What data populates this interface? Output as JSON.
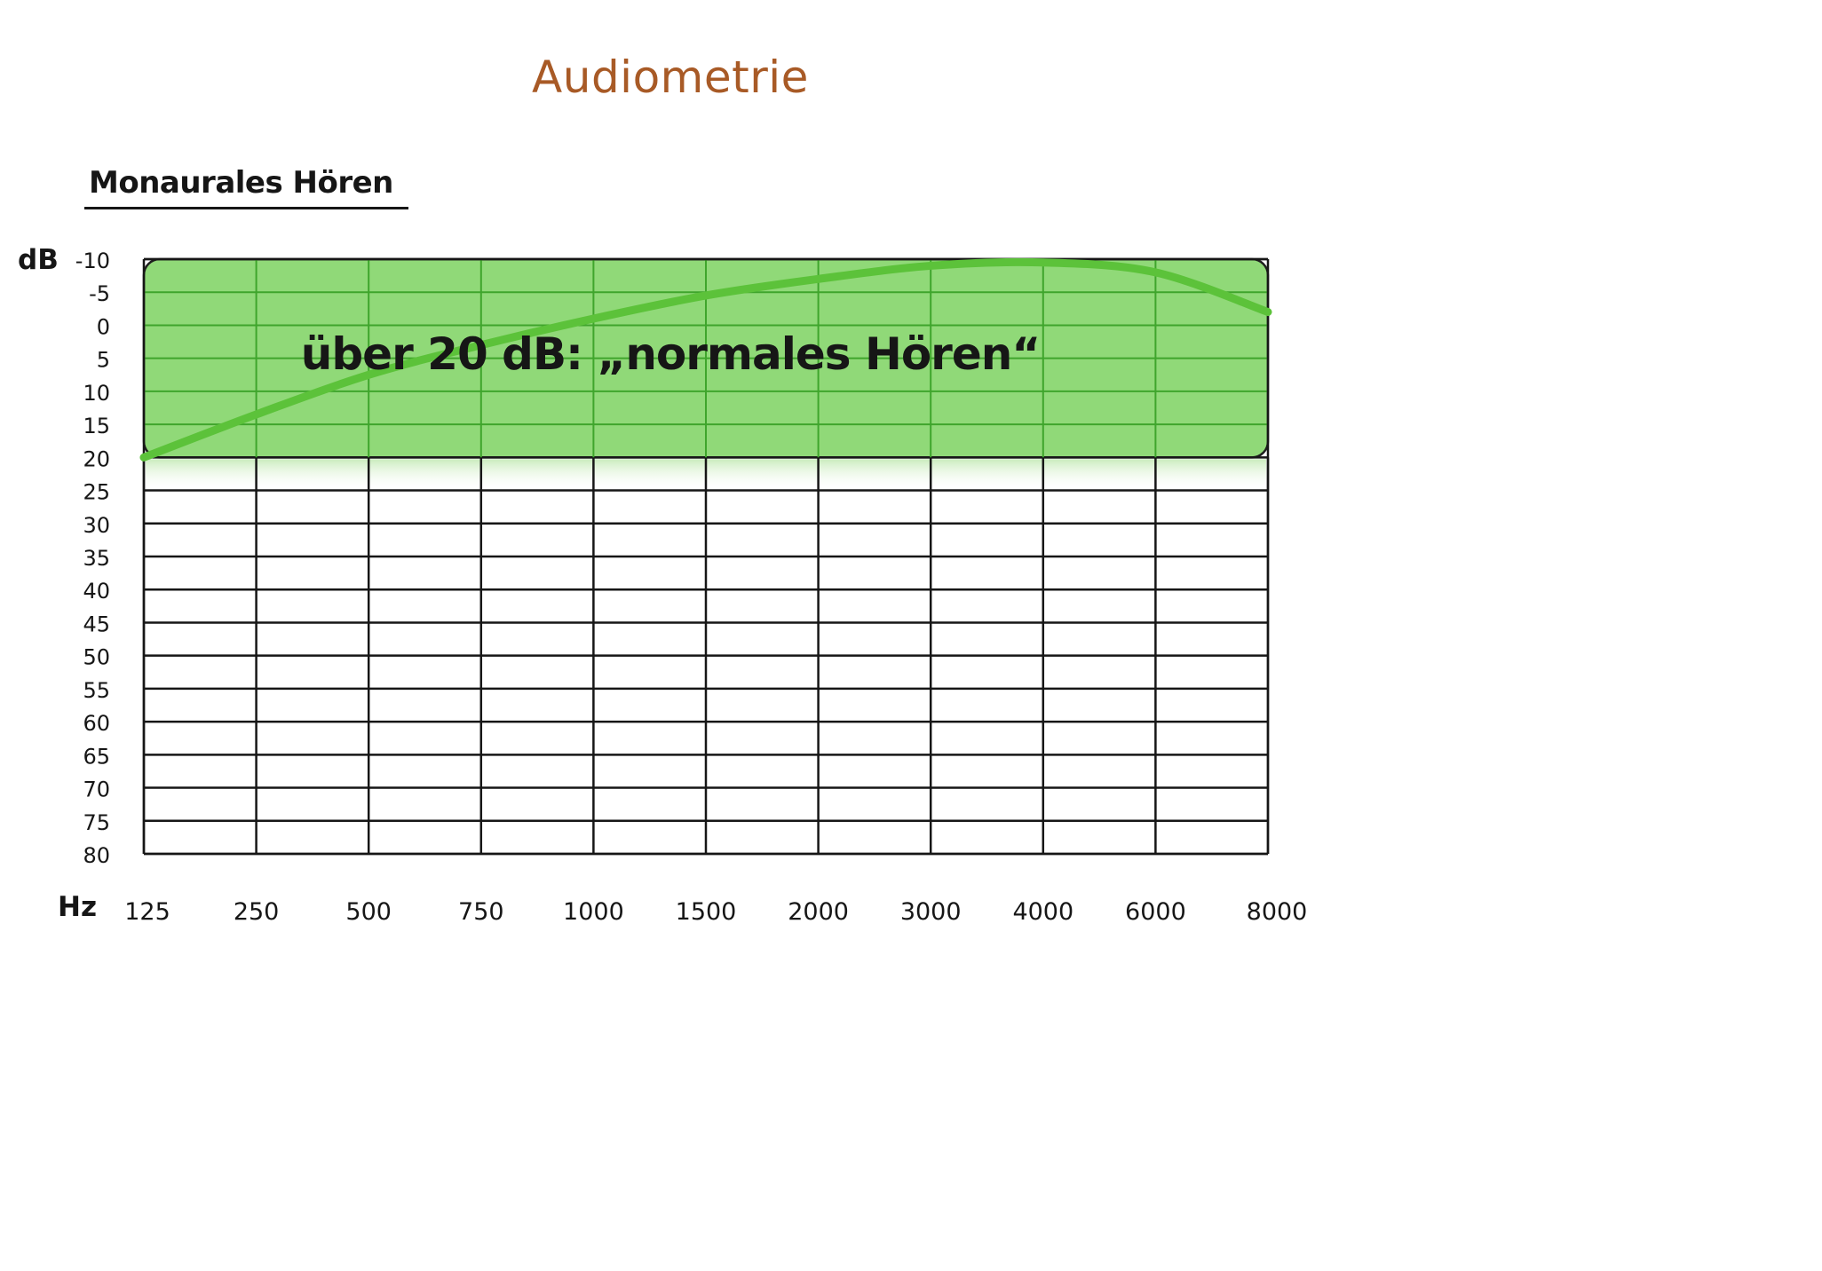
{
  "header": {
    "title": "Audiometrie",
    "subtitle": "Monaurales Hören"
  },
  "colors": {
    "title": "#a85a26",
    "zone_fill": "#90d978",
    "curve": "#5cc23a",
    "grid_green": "#3fa52c",
    "grid": "#161616"
  },
  "chart_data": {
    "type": "line",
    "title": "",
    "xlabel": "Hz",
    "ylabel": "dB",
    "x": [
      "125",
      "250",
      "500",
      "750",
      "1000",
      "1500",
      "2000",
      "3000",
      "4000",
      "6000",
      "8000"
    ],
    "y_ticks": [
      -10,
      -5,
      0,
      5,
      10,
      15,
      20,
      25,
      30,
      35,
      40,
      45,
      50,
      55,
      60,
      65,
      70,
      75,
      80
    ],
    "y_tick_labels": [
      "-10",
      "-5",
      "0",
      "5",
      "10",
      "15",
      "20",
      "25",
      "30",
      "35",
      "40",
      "45",
      "50",
      "55",
      "60",
      "65",
      "70",
      "75",
      "80"
    ],
    "ylim": [
      -10,
      80
    ],
    "y_inverted": true,
    "grid": true,
    "series": [
      {
        "values": [
          20,
          13.5,
          7.5,
          3,
          -1,
          -4.5,
          -7,
          -9,
          -9.5,
          -8,
          -2
        ]
      }
    ],
    "zone": {
      "y_from": -10,
      "y_to": 20,
      "label": "über 20 dB: „normales Hören“"
    }
  }
}
